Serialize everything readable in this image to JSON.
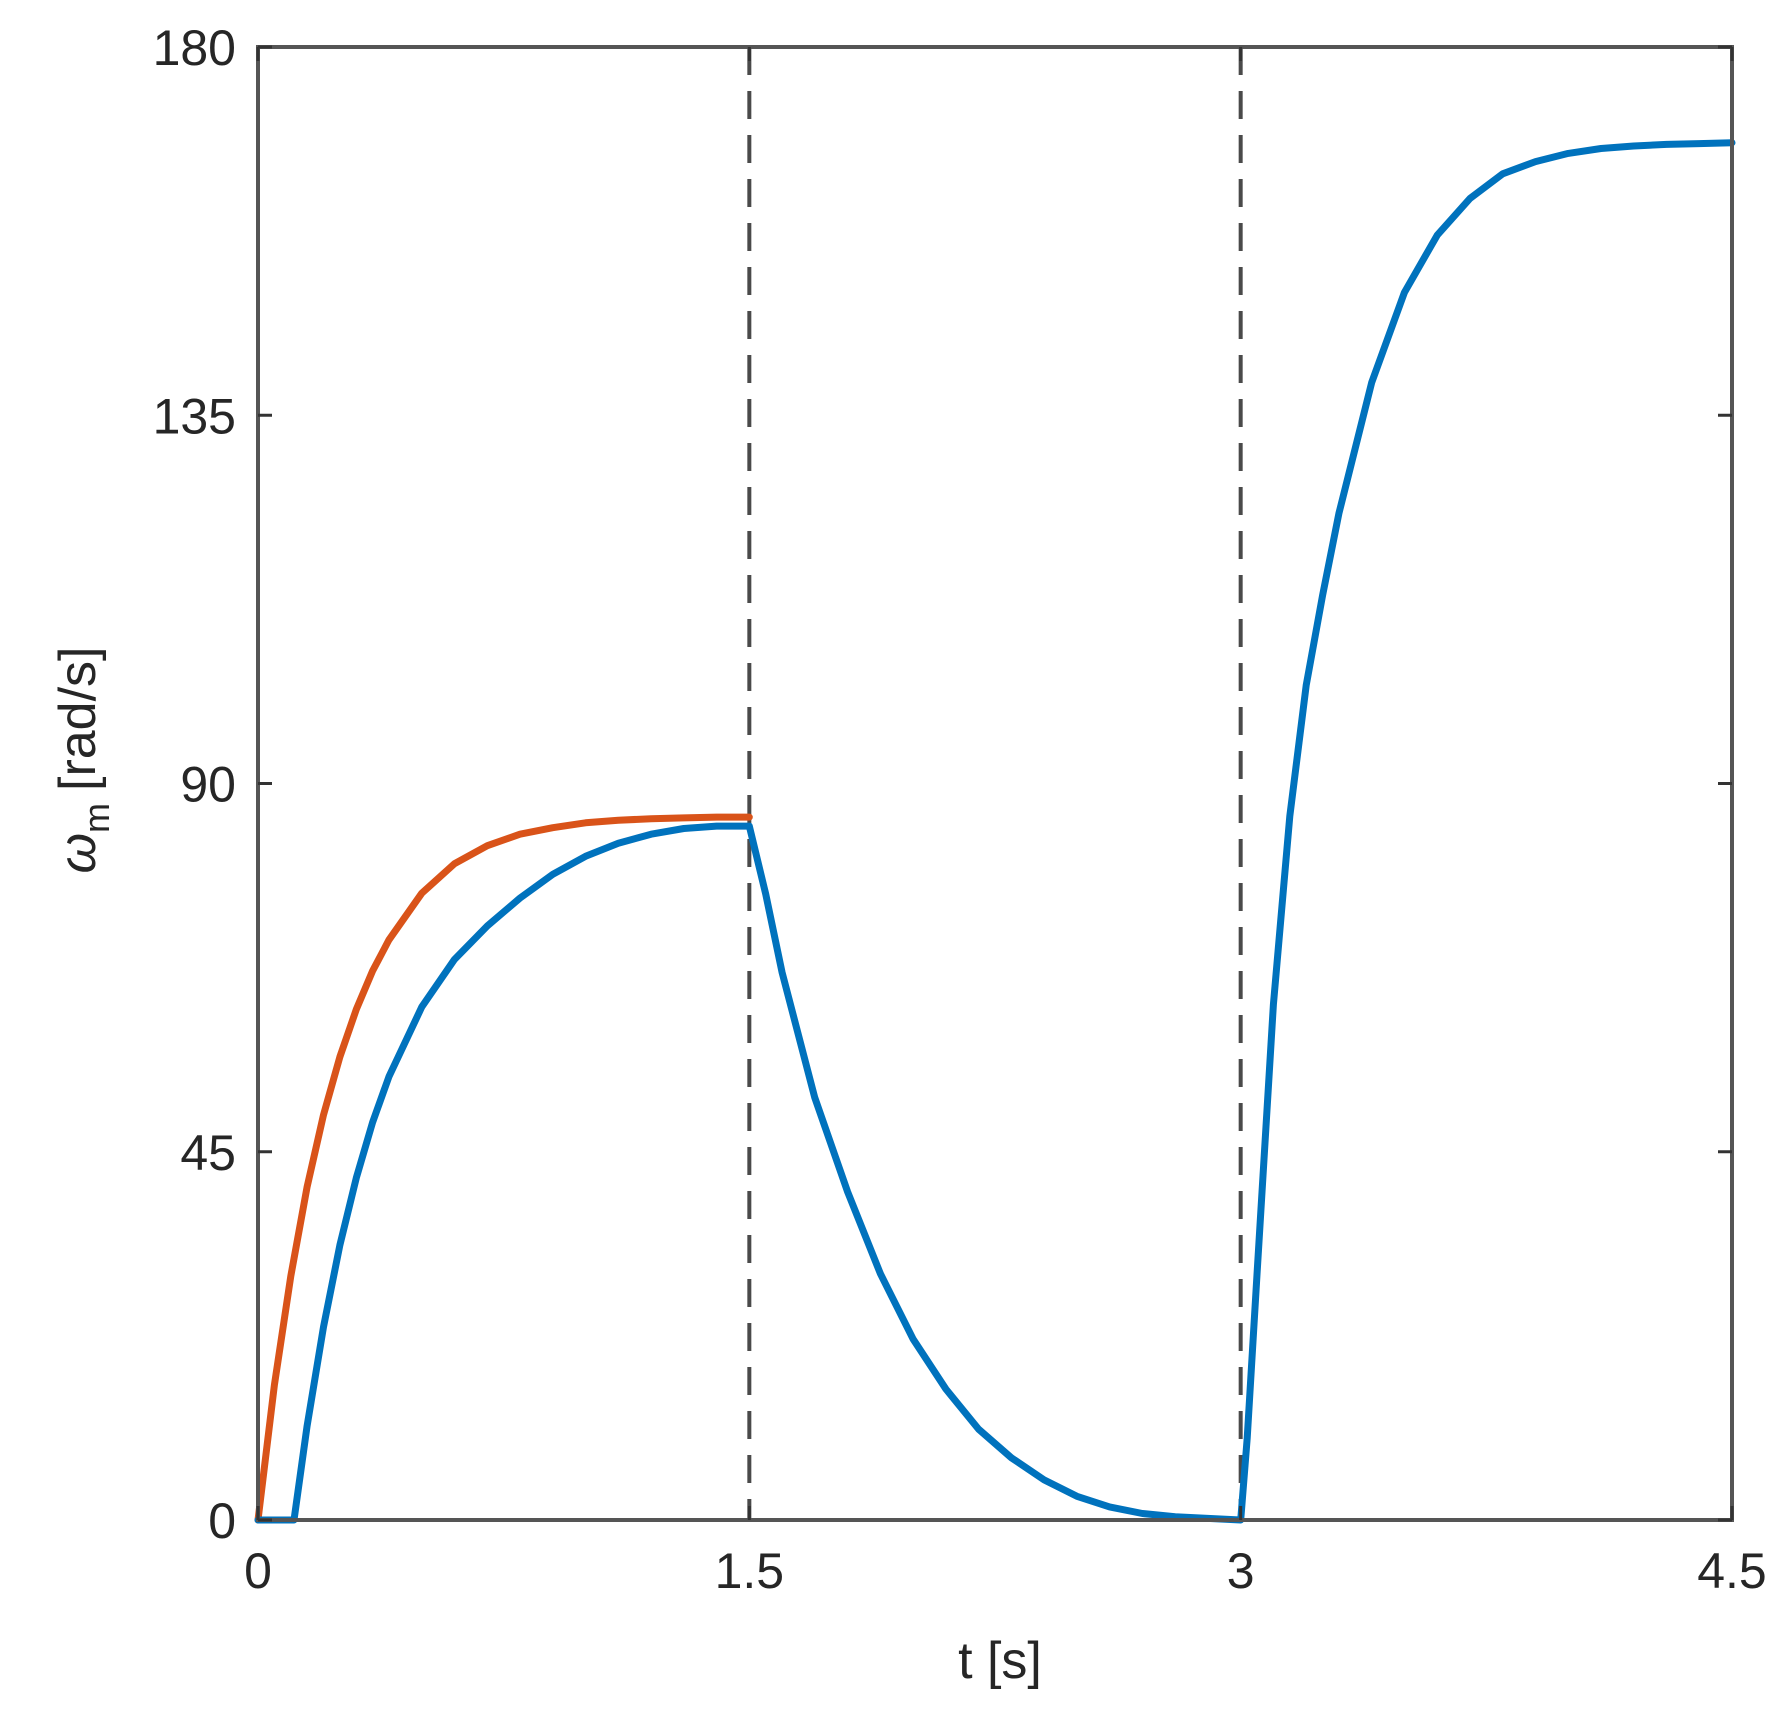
{
  "chart_data": {
    "type": "line",
    "title": "",
    "xlabel": "t [s]",
    "ylabel_main": "ω",
    "ylabel_sub": "m",
    "ylabel_unit": "[rad/s]",
    "xlim": [
      0,
      4.5
    ],
    "ylim": [
      0,
      180
    ],
    "xticks": [
      0,
      1.5,
      3,
      4.5
    ],
    "xtick_labels": [
      "0",
      "1.5",
      "3",
      "4.5"
    ],
    "yticks": [
      0,
      45,
      90,
      135,
      180
    ],
    "ytick_labels": [
      "0",
      "45",
      "90",
      "135",
      "180"
    ],
    "grid": false,
    "legend": "none",
    "vertical_dashed_lines_x": [
      1.5,
      3
    ],
    "series": [
      {
        "color": "#D95319",
        "x": [
          0,
          0.05,
          0.1,
          0.15,
          0.2,
          0.25,
          0.3,
          0.35,
          0.4,
          0.5,
          0.6,
          0.7,
          0.8,
          0.9,
          1.0,
          1.1,
          1.2,
          1.3,
          1.4,
          1.5
        ],
        "y": [
          0,
          16.5,
          29.8,
          40.7,
          49.5,
          56.6,
          62.4,
          67.1,
          70.9,
          76.6,
          80.2,
          82.4,
          83.8,
          84.6,
          85.2,
          85.5,
          85.7,
          85.8,
          85.9,
          85.9
        ]
      },
      {
        "color": "#0072BD",
        "x": [
          0,
          0.05,
          0.1,
          0.11,
          0.15,
          0.2,
          0.25,
          0.3,
          0.35,
          0.4,
          0.5,
          0.6,
          0.7,
          0.8,
          0.9,
          1.0,
          1.1,
          1.2,
          1.3,
          1.4,
          1.5,
          1.55,
          1.6,
          1.7,
          1.8,
          1.9,
          2.0,
          2.1,
          2.2,
          2.3,
          2.4,
          2.5,
          2.6,
          2.7,
          2.8,
          2.9,
          3.0,
          3.02,
          3.05,
          3.1,
          3.15,
          3.2,
          3.25,
          3.3,
          3.4,
          3.5,
          3.6,
          3.7,
          3.8,
          3.9,
          4.0,
          4.1,
          4.2,
          4.3,
          4.4,
          4.5
        ],
        "y": [
          0,
          0,
          0,
          0,
          11.5,
          23.6,
          33.6,
          41.8,
          48.6,
          54.2,
          62.7,
          68.5,
          72.6,
          76.0,
          78.9,
          81.1,
          82.7,
          83.8,
          84.5,
          84.8,
          84.8,
          76.5,
          66.9,
          51.6,
          40.1,
          30.1,
          22.1,
          16.0,
          11.1,
          7.6,
          4.9,
          2.9,
          1.6,
          0.8,
          0.4,
          0.2,
          0,
          10.0,
          30.0,
          63.0,
          86.0,
          102.0,
          113.0,
          123.0,
          139.0,
          150.0,
          157.0,
          161.5,
          164.5,
          166.0,
          167.0,
          167.6,
          167.9,
          168.1,
          168.2,
          168.3
        ]
      }
    ]
  }
}
